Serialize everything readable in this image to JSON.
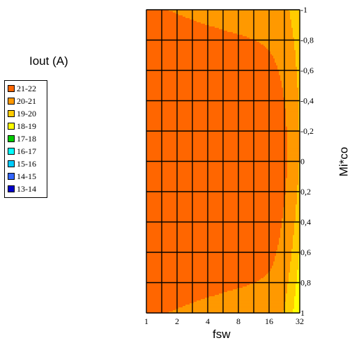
{
  "chart_data": {
    "type": "contour",
    "title": "Iout (A)",
    "xlabel": "fsw",
    "ylabel": "Mi*co",
    "x_ticks": [
      "1",
      "2",
      "4",
      "8",
      "16",
      "32"
    ],
    "y_ticks": [
      "-1",
      "-0,8",
      "-0,6",
      "-0,4",
      "-0,2",
      "0",
      "0,2",
      "0,4",
      "0,6",
      "0,8",
      "1"
    ],
    "x_scale": "log2",
    "x_range": [
      1,
      32
    ],
    "y_range": [
      -1,
      1
    ],
    "grid": true,
    "legend_position": "left",
    "legend": [
      {
        "label": "21-22",
        "color": "#FF6600"
      },
      {
        "label": "20-21",
        "color": "#FF9900"
      },
      {
        "label": "19-20",
        "color": "#FFCC00"
      },
      {
        "label": "18-19",
        "color": "#FFFF00"
      },
      {
        "label": "17-18",
        "color": "#00CC00"
      },
      {
        "label": "16-17",
        "color": "#00FFFF"
      },
      {
        "label": "15-16",
        "color": "#00CCFF"
      },
      {
        "label": "14-15",
        "color": "#3366FF"
      },
      {
        "label": "13-14",
        "color": "#0000CC"
      }
    ],
    "band_min": [
      21,
      20,
      19,
      18,
      17,
      16,
      15,
      14,
      13
    ]
  }
}
